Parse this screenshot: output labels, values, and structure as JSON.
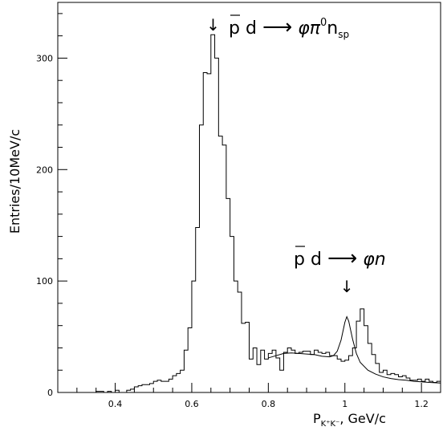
{
  "chart_data": {
    "type": "histogram",
    "xlabel_main": "P",
    "xlabel_sub": "K⁺K⁻",
    "xlabel_tail": ",   GeV/c",
    "ylabel": "Entries/10MeV/c",
    "xlim": [
      0.25,
      1.25
    ],
    "ylim": [
      0,
      350
    ],
    "xticks": [
      0.4,
      0.6,
      0.8,
      1.0,
      1.2
    ],
    "xtick_labels": [
      "0.4",
      "0.6",
      "0.8",
      "1",
      "1.2"
    ],
    "yticks": [
      0,
      100,
      200,
      300
    ],
    "ytick_labels": [
      "0",
      "100",
      "200",
      "300"
    ],
    "bin_width": 0.01,
    "bin_start": 0.25,
    "counts": [
      0,
      0,
      0,
      0,
      0,
      0,
      0,
      0,
      0,
      0,
      1,
      1,
      0,
      1,
      0,
      2,
      0,
      0,
      2,
      3,
      5,
      6,
      7,
      7,
      8,
      10,
      11,
      10,
      10,
      12,
      15,
      17,
      20,
      38,
      58,
      100,
      148,
      240,
      287,
      286,
      321,
      300,
      230,
      222,
      174,
      140,
      100,
      90,
      62,
      63,
      30,
      40,
      25,
      38,
      30,
      35,
      38,
      31,
      20,
      36,
      40,
      38,
      35,
      36,
      37,
      37,
      34,
      38,
      36,
      35,
      36,
      33,
      33,
      30,
      28,
      29,
      33,
      40,
      64,
      75,
      60,
      44,
      34,
      26,
      18,
      20,
      16,
      17,
      16,
      14,
      15,
      13,
      11,
      11,
      12,
      10,
      12,
      10,
      9,
      10
    ],
    "fit_curve": {
      "x": [
        0.8,
        0.82,
        0.84,
        0.86,
        0.88,
        0.9,
        0.92,
        0.94,
        0.96,
        0.97,
        0.98,
        0.99,
        1.0,
        1.005,
        1.01,
        1.02,
        1.03,
        1.04,
        1.06,
        1.08,
        1.1,
        1.12,
        1.14,
        1.16,
        1.18,
        1.2,
        1.22,
        1.25
      ],
      "y": [
        31,
        33,
        35,
        35.5,
        35,
        34.5,
        34,
        32.5,
        32,
        33,
        37,
        47,
        63,
        68,
        64,
        48,
        35,
        27,
        20,
        16.5,
        14,
        12.5,
        11.5,
        11,
        10,
        9.5,
        9,
        8.5
      ]
    },
    "annotations": [
      {
        "name": "upper-reaction",
        "pbar": "p",
        "target": "d",
        "arrow": "⟶",
        "products": "φπ",
        "sup": "0",
        "base": "n",
        "sub": "sp",
        "x": 0.66,
        "y": 320
      },
      {
        "name": "lower-reaction",
        "pbar": "p",
        "target": "d",
        "arrow": "⟶",
        "products": "φn",
        "x": 1.005,
        "y": 75
      }
    ]
  }
}
